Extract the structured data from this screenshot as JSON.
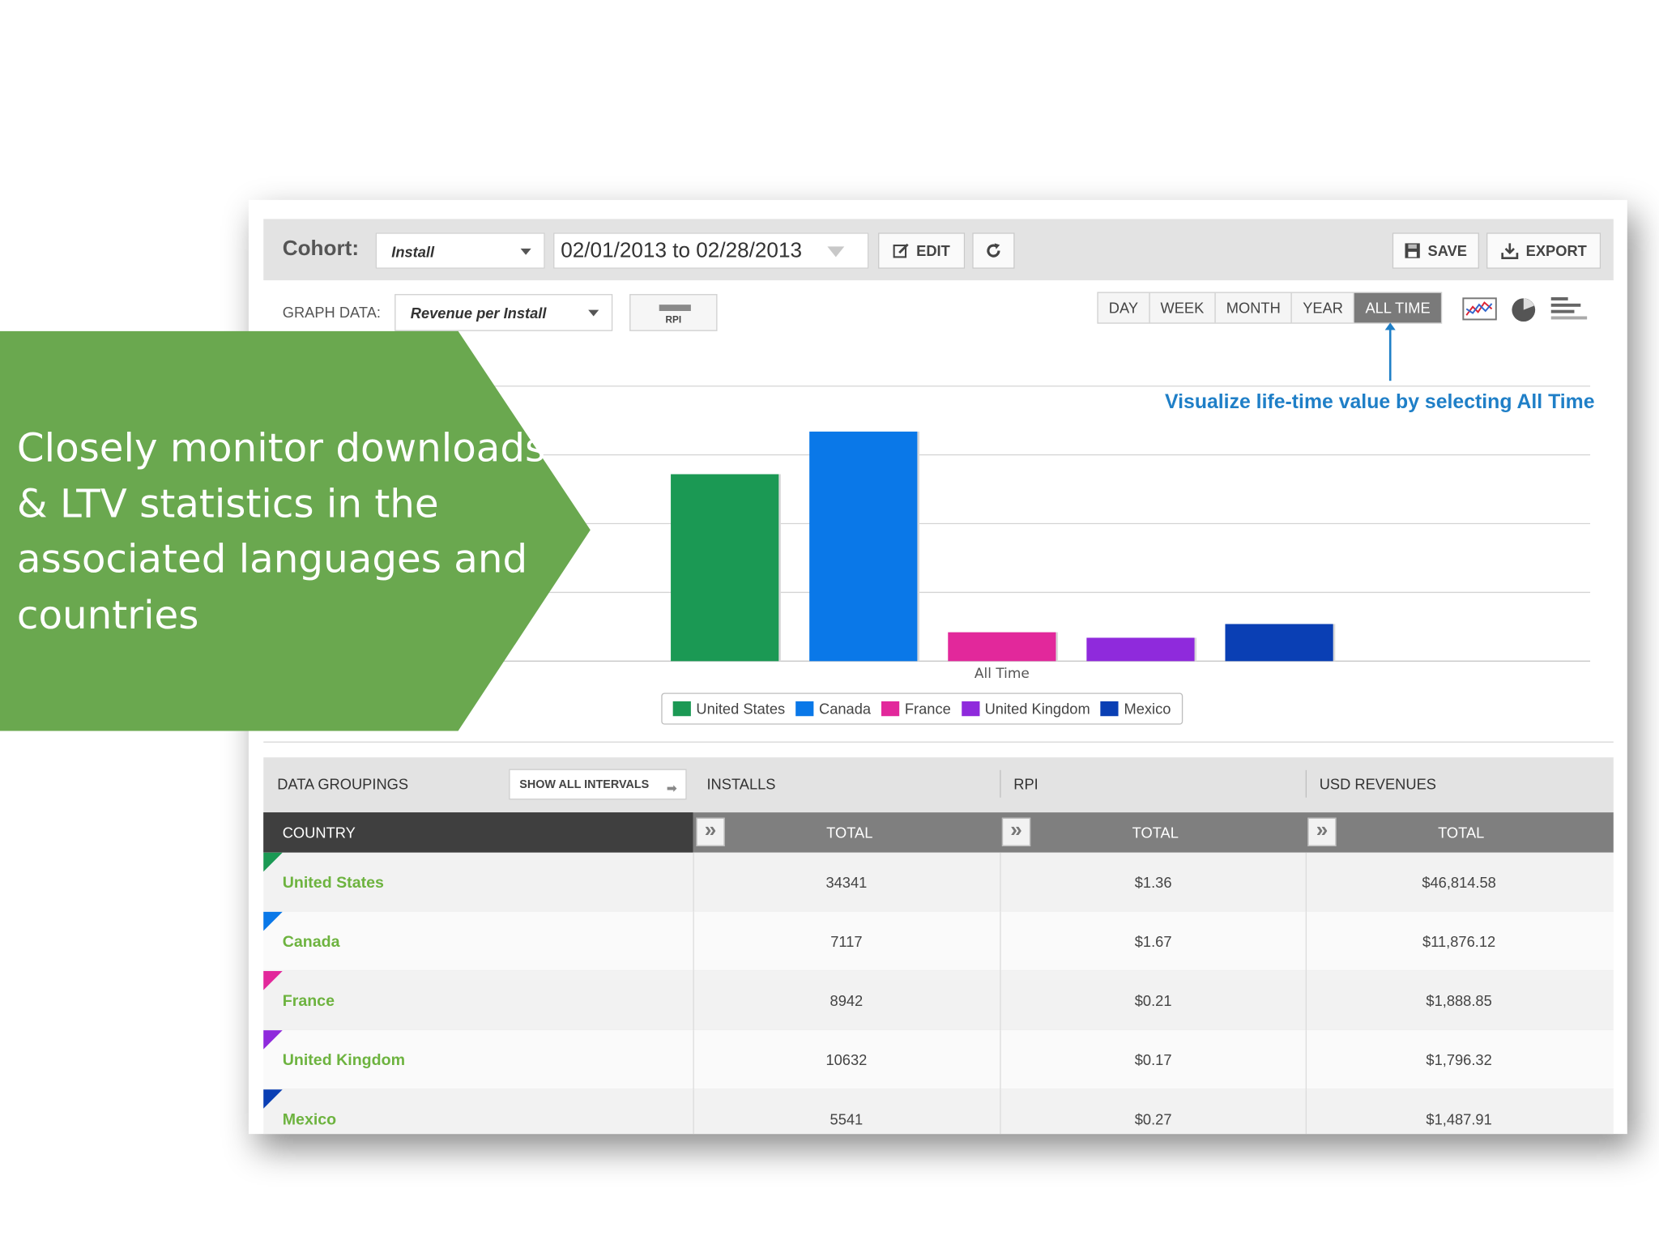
{
  "cohort": {
    "label": "Cohort:",
    "selected": "Install",
    "date_range": "02/01/2013 to 02/28/2013",
    "edit_label": "EDIT",
    "save_label": "SAVE",
    "export_label": "EXPORT"
  },
  "graph_data": {
    "label": "GRAPH DATA:",
    "selected": "Revenue per Install",
    "rpi_button_label": "RPI",
    "time_ranges": [
      "DAY",
      "WEEK",
      "MONTH",
      "YEAR",
      "ALL TIME"
    ],
    "active_time_range": "ALL TIME",
    "chart_type_icons": [
      "line-chart-icon",
      "pie-chart-icon",
      "bar-chart-icon"
    ]
  },
  "annotation": "Visualize life-time value by selecting All Time",
  "callout": "Closely monitor downloads & LTV statistics in the associated languages and countries",
  "chart_data": {
    "type": "bar",
    "categories": [
      "All Time"
    ],
    "ylim": [
      0,
      1.67
    ],
    "series": [
      {
        "name": "United States",
        "color": "#1b9954",
        "values": [
          1.36
        ]
      },
      {
        "name": "Canada",
        "color": "#0a78e8",
        "values": [
          1.67
        ]
      },
      {
        "name": "France",
        "color": "#e2289b",
        "values": [
          0.21
        ]
      },
      {
        "name": "United Kingdom",
        "color": "#8f2adc",
        "values": [
          0.17
        ]
      },
      {
        "name": "Mexico",
        "color": "#0a3fb4",
        "values": [
          0.27
        ]
      }
    ],
    "grid": true,
    "legend_position": "bottom-center"
  },
  "table": {
    "groupings_label": "DATA GROUPINGS",
    "show_all_label": "SHOW ALL INTERVALS",
    "group_headers": [
      "INSTALLS",
      "RPI",
      "USD REVENUES"
    ],
    "country_header": "COUNTRY",
    "total_header": "TOTAL",
    "rows": [
      {
        "country": "United States",
        "color": "#1b9954",
        "installs": "34341",
        "rpi": "$1.36",
        "revenue": "$46,814.58"
      },
      {
        "country": "Canada",
        "color": "#0a78e8",
        "installs": "7117",
        "rpi": "$1.67",
        "revenue": "$11,876.12"
      },
      {
        "country": "France",
        "color": "#e2289b",
        "installs": "8942",
        "rpi": "$0.21",
        "revenue": "$1,888.85"
      },
      {
        "country": "United Kingdom",
        "color": "#8f2adc",
        "installs": "10632",
        "rpi": "$0.17",
        "revenue": "$1,796.32"
      },
      {
        "country": "Mexico",
        "color": "#0a3fb4",
        "installs": "5541",
        "rpi": "$0.27",
        "revenue": "$1,487.91"
      }
    ]
  },
  "colors": {
    "callout_green": "#6aa84f",
    "annotation_blue": "#1f7fc7",
    "country_name_green": "#6db33f"
  }
}
